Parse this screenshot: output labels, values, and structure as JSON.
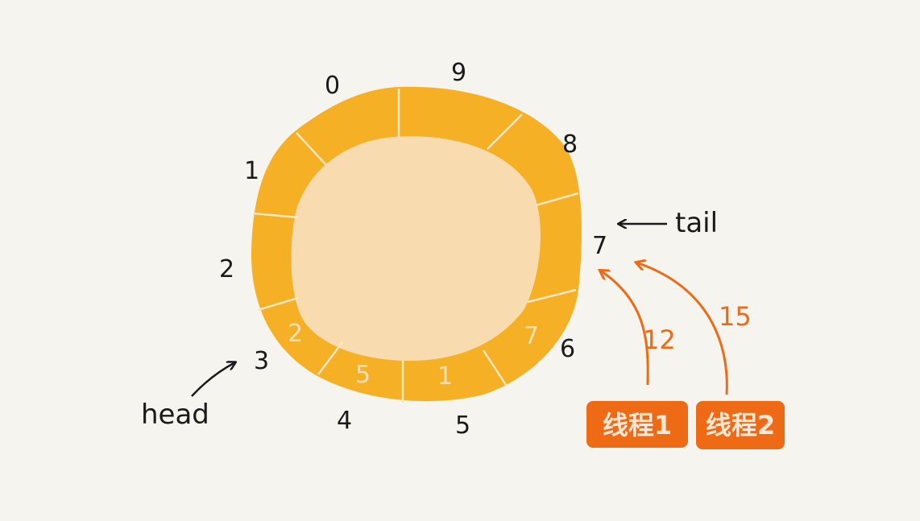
{
  "colors": {
    "background": "#f6f4ef",
    "ring": "#f6b025",
    "center": "#f9dbb0",
    "divider": "#fbe7c4",
    "slot_value": "#f8dfb7",
    "ink": "#1a1a1a",
    "thread_accent": "#ef6a14"
  },
  "ring": {
    "slot_count": 10,
    "slot_indices": [
      "0",
      "1",
      "2",
      "3",
      "4",
      "5",
      "6",
      "7",
      "8",
      "9"
    ],
    "stored_values": [
      {
        "slot": 3,
        "text": "2"
      },
      {
        "slot": 4,
        "text": "5"
      },
      {
        "slot": 5,
        "text": "1"
      },
      {
        "slot": 6,
        "text": "7"
      }
    ]
  },
  "pointers": {
    "head": {
      "label": "head",
      "slot": 3
    },
    "tail": {
      "label": "tail",
      "slot": 7
    }
  },
  "threads": [
    {
      "label": "线程1",
      "value": "12"
    },
    {
      "label": "线程2",
      "value": "15"
    }
  ]
}
